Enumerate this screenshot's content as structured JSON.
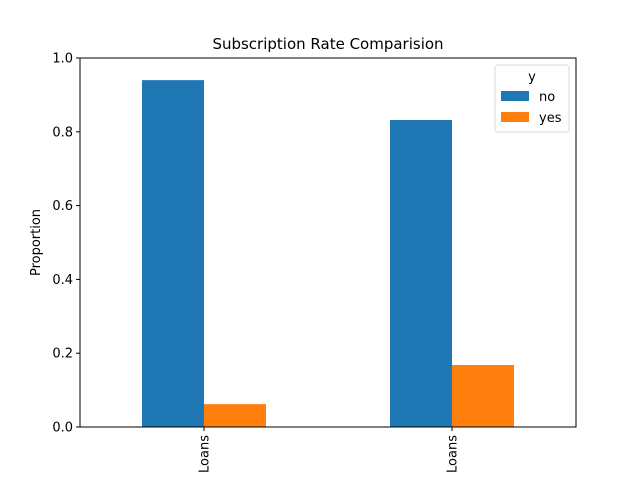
{
  "chart_data": {
    "type": "bar",
    "title": "Subscription Rate Comparision",
    "xlabel": "",
    "ylabel": "Proportion",
    "ylim": [
      0,
      1.0
    ],
    "yticks": [
      "0.0",
      "0.2",
      "0.4",
      "0.6",
      "0.8",
      "1.0"
    ],
    "categories": [
      "Loans",
      "Loans"
    ],
    "series": [
      {
        "name": "no",
        "values": [
          0.94,
          0.832
        ],
        "color": "#1f77b4"
      },
      {
        "name": "yes",
        "values": [
          0.062,
          0.168
        ],
        "color": "#ff7f0e"
      }
    ],
    "legend": {
      "title": "y",
      "placement": "top-right"
    },
    "grid": false
  }
}
